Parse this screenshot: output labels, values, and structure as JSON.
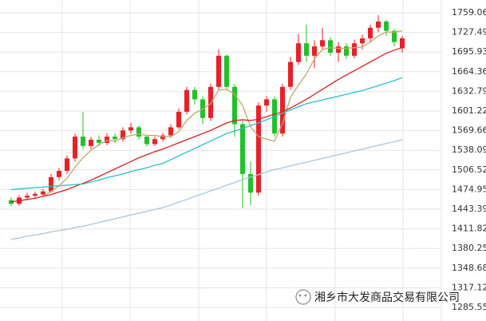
{
  "chart_data": {
    "type": "candlestick",
    "up_color": "#e8202a",
    "down_color": "#22c02a",
    "open": [
      1458,
      1452,
      1462,
      1465,
      1467,
      1472,
      1495,
      1505,
      1525,
      1560,
      1545,
      1555,
      1550,
      1560,
      1556,
      1570,
      1575,
      1560,
      1548,
      1556,
      1562,
      1575,
      1600,
      1635,
      1620,
      1590,
      1640,
      1690,
      1640,
      1580,
      1500,
      1470,
      1610,
      1620,
      1565,
      1640,
      1680,
      1710,
      1690,
      1705,
      1715,
      1695,
      1705,
      1690,
      1710,
      1718,
      1735,
      1745,
      1730,
      1702
    ],
    "high": [
      1462,
      1466,
      1470,
      1472,
      1476,
      1500,
      1510,
      1530,
      1565,
      1600,
      1560,
      1562,
      1566,
      1565,
      1575,
      1582,
      1578,
      1563,
      1560,
      1566,
      1580,
      1605,
      1640,
      1640,
      1625,
      1645,
      1700,
      1692,
      1645,
      1585,
      1520,
      1615,
      1625,
      1625,
      1645,
      1688,
      1725,
      1740,
      1715,
      1735,
      1720,
      1712,
      1710,
      1716,
      1724,
      1740,
      1755,
      1748,
      1733,
      1722
    ],
    "low": [
      1448,
      1449,
      1458,
      1460,
      1464,
      1470,
      1490,
      1500,
      1520,
      1540,
      1540,
      1545,
      1546,
      1550,
      1552,
      1565,
      1555,
      1544,
      1545,
      1552,
      1558,
      1572,
      1596,
      1612,
      1580,
      1585,
      1635,
      1635,
      1560,
      1445,
      1450,
      1465,
      1600,
      1560,
      1560,
      1635,
      1675,
      1680,
      1670,
      1700,
      1690,
      1680,
      1685,
      1686,
      1700,
      1712,
      1728,
      1722,
      1705,
      1695
    ],
    "close": [
      1452,
      1462,
      1465,
      1468,
      1472,
      1495,
      1505,
      1525,
      1560,
      1545,
      1555,
      1550,
      1560,
      1556,
      1570,
      1575,
      1560,
      1548,
      1556,
      1562,
      1575,
      1600,
      1635,
      1620,
      1590,
      1640,
      1690,
      1640,
      1580,
      1500,
      1470,
      1610,
      1620,
      1565,
      1640,
      1680,
      1710,
      1690,
      1705,
      1715,
      1695,
      1705,
      1690,
      1710,
      1718,
      1735,
      1745,
      1730,
      1712,
      1718
    ],
    "lines": [
      {
        "color": "#c9a46a",
        "values": [
          null,
          null,
          null,
          null,
          1464,
          1472,
          1481,
          1493,
          1511,
          1526,
          1538,
          1547,
          1554,
          1553,
          1558,
          1562,
          1564,
          1562,
          1562,
          1560,
          1560,
          1568,
          1586,
          1598,
          1604,
          1613,
          1635,
          1636,
          1628,
          1610,
          1576,
          1560,
          1556,
          1553,
          1581,
          1623,
          1643,
          1661,
          1685,
          1700,
          1703,
          1702,
          1702,
          1703,
          1704,
          1712,
          1722,
          1728,
          1728,
          1730
        ]
      },
      {
        "color": "#d42020",
        "values": [
          1455,
          1457,
          1459,
          1461,
          1464,
          1467,
          1471,
          1475,
          1480,
          1485,
          1490,
          1496,
          1502,
          1508,
          1514,
          1520,
          1526,
          1531,
          1536,
          1540,
          1545,
          1550,
          1555,
          1560,
          1565,
          1570,
          1576,
          1582,
          1586,
          1587,
          1586,
          1588,
          1592,
          1596,
          1600,
          1606,
          1613,
          1620,
          1628,
          1636,
          1644,
          1652,
          1659,
          1666,
          1673,
          1680,
          1687,
          1694,
          1699,
          1703
        ]
      },
      {
        "color": "#2cc0c8",
        "values": [
          1475,
          1476,
          1477,
          1478,
          1479,
          1480,
          1481,
          1482,
          1483,
          1484,
          1487,
          1490,
          1494,
          1497,
          1500,
          1504,
          1507,
          1510,
          1514,
          1517,
          1523,
          1529,
          1535,
          1541,
          1547,
          1553,
          1559,
          1565,
          1569,
          1573,
          1578,
          1582,
          1587,
          1592,
          1598,
          1603,
          1608,
          1613,
          1616,
          1619,
          1622,
          1625,
          1628,
          1631,
          1634,
          1638,
          1642,
          1646,
          1650,
          1655
        ]
      },
      {
        "color": "#a8c6de",
        "values": [
          1395,
          1397,
          1400,
          1402,
          1404,
          1407,
          1409,
          1411,
          1414,
          1416,
          1419,
          1422,
          1425,
          1428,
          1431,
          1434,
          1437,
          1440,
          1443,
          1446,
          1450,
          1455,
          1459,
          1464,
          1468,
          1473,
          1477,
          1482,
          1486,
          1491,
          1495,
          1499,
          1503,
          1507,
          1510,
          1513,
          1516,
          1519,
          1522,
          1525,
          1528,
          1531,
          1534,
          1537,
          1540,
          1543,
          1546,
          1549,
          1552,
          1555
        ]
      }
    ],
    "ylim": [
      1263.7,
      1779.6
    ],
    "yticks": [
      1759.06,
      1727.49,
      1695.93,
      1664.36,
      1632.79,
      1601.22,
      1569.66,
      1538.09,
      1506.52,
      1474.95,
      1443.39,
      1411.82,
      1380.25,
      1348.68,
      1317.12,
      1285.55
    ],
    "grid": true
  },
  "watermark": "湘乡市大发商品交易有限公司"
}
